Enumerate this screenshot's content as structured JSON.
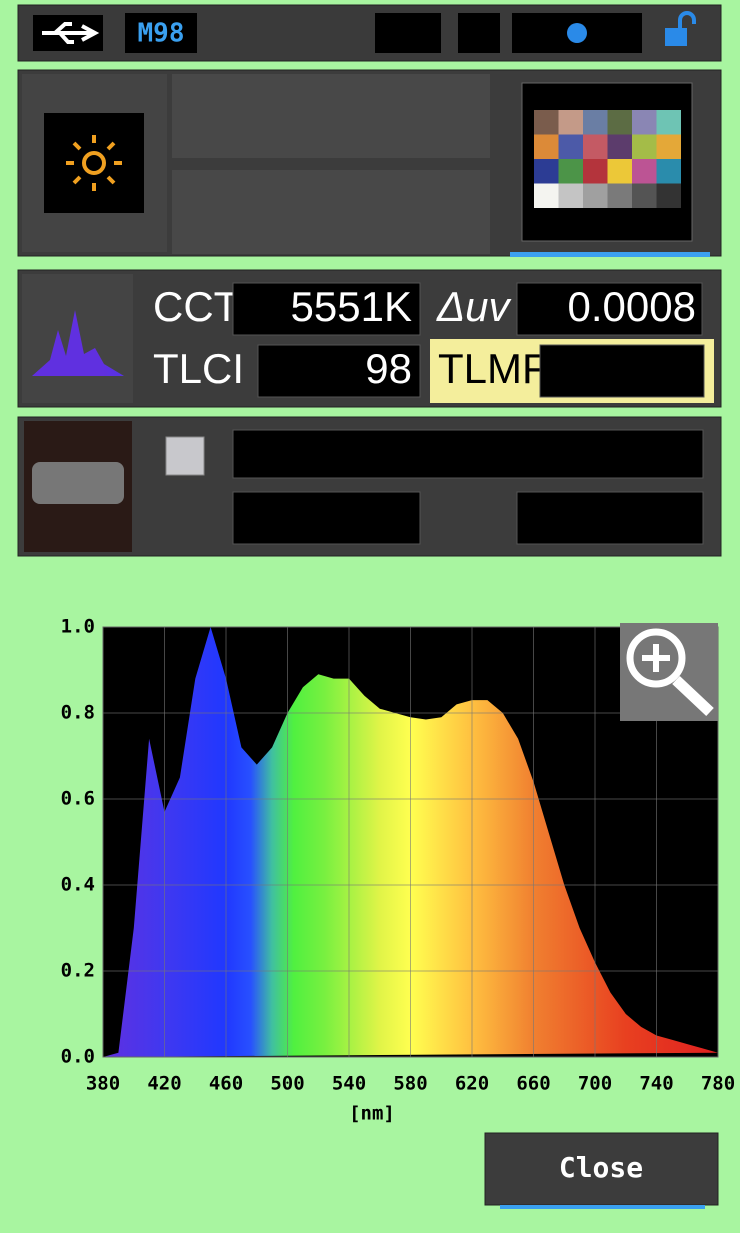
{
  "header": {
    "memory": "M98"
  },
  "readings": {
    "cct_label": "CCT",
    "cct": "5551K",
    "duv_label": "Δuv",
    "duv": "0.0008",
    "tlci_label": "TLCI",
    "tlci": "98",
    "tlmf_label": "TLMF"
  },
  "chart_data": {
    "type": "area",
    "xlabel": "[nm]",
    "x": [
      380,
      390,
      400,
      410,
      420,
      430,
      440,
      450,
      460,
      470,
      480,
      490,
      500,
      510,
      520,
      530,
      540,
      550,
      560,
      570,
      580,
      590,
      600,
      610,
      620,
      630,
      640,
      650,
      660,
      670,
      680,
      690,
      700,
      710,
      720,
      730,
      740,
      750,
      760,
      770,
      780
    ],
    "values": [
      0,
      0.01,
      0.3,
      0.74,
      0.57,
      0.65,
      0.88,
      1.0,
      0.88,
      0.72,
      0.68,
      0.72,
      0.8,
      0.86,
      0.89,
      0.88,
      0.88,
      0.84,
      0.81,
      0.8,
      0.79,
      0.785,
      0.79,
      0.82,
      0.83,
      0.83,
      0.8,
      0.74,
      0.64,
      0.52,
      0.4,
      0.3,
      0.22,
      0.15,
      0.1,
      0.07,
      0.05,
      0.04,
      0.03,
      0.02,
      0.01
    ],
    "xlim": [
      380,
      780
    ],
    "ylim": [
      0,
      1
    ],
    "xticks": [
      380,
      420,
      460,
      500,
      540,
      580,
      620,
      660,
      700,
      740,
      780
    ],
    "yticks": [
      {
        "value": 0,
        "label": "0.0"
      },
      {
        "value": 0.2,
        "label": "0.2"
      },
      {
        "value": 0.4,
        "label": "0.4"
      },
      {
        "value": 0.6,
        "label": "0.6"
      },
      {
        "value": 0.8,
        "label": "0.8"
      },
      {
        "value": 1,
        "label": "1.0"
      }
    ],
    "grid": true
  },
  "buttons": {
    "close": "Close"
  }
}
